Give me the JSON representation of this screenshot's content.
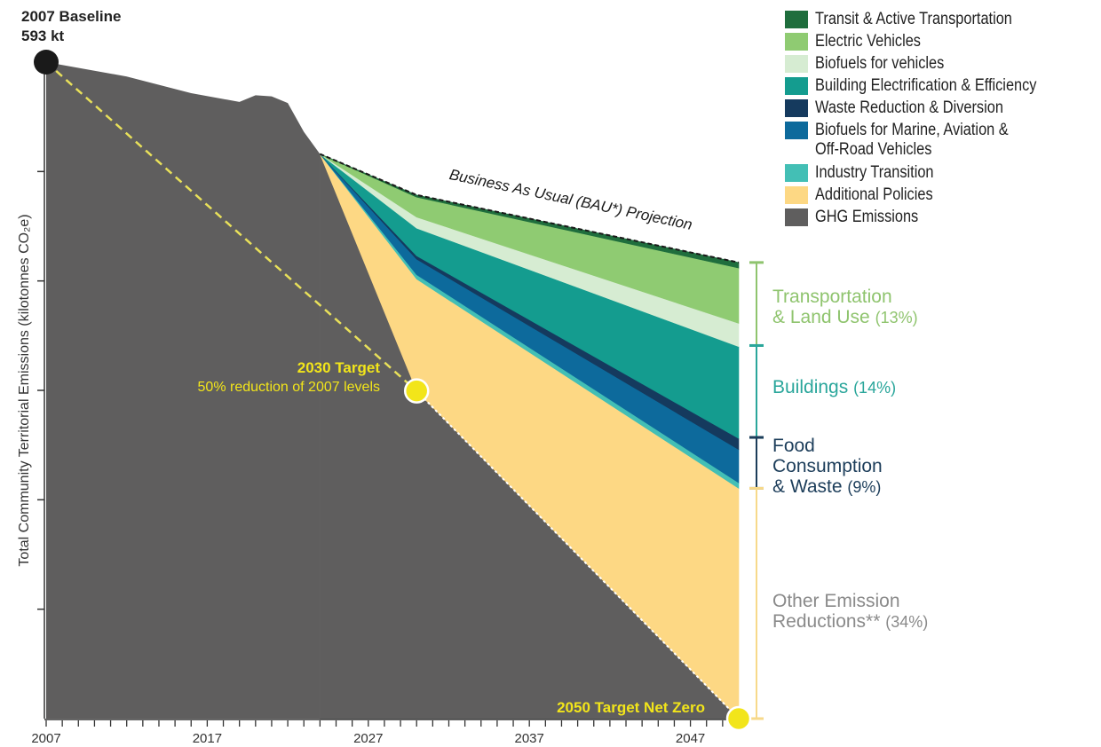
{
  "chart_data": {
    "type": "area",
    "title": "",
    "xlabel": "",
    "ylabel": "Total Community Territorial Emissions (kilotonnes CO₂e)",
    "xlim": [
      2007,
      2051
    ],
    "ylim": [
      0,
      593
    ],
    "x_ticks": [
      2007,
      2017,
      2027,
      2037,
      2047
    ],
    "grid": false,
    "legend_position": "top-right",
    "historical_emissions": {
      "name": "GHG Emissions",
      "x": [
        2007,
        2012,
        2016,
        2019,
        2020,
        2021,
        2022,
        2023,
        2024
      ],
      "y": [
        593,
        580,
        565,
        557,
        563,
        562,
        556,
        530,
        510
      ]
    },
    "bau_projection": {
      "label": "Business As Usual (BAU*) Projection",
      "x": [
        2024,
        2030,
        2050
      ],
      "y": [
        510,
        473,
        412
      ]
    },
    "projection_x": [
      2024,
      2030,
      2050
    ],
    "series": [
      {
        "name": "Transit & Active Transportation",
        "color": "#1f6e3d",
        "values": [
          0,
          2,
          5
        ]
      },
      {
        "name": "Electric Vehicles",
        "color": "#8fcb72",
        "values": [
          0,
          18,
          50
        ]
      },
      {
        "name": "Biofuels for vehicles",
        "color": "#d6ecd2",
        "values": [
          0,
          10,
          21
        ]
      },
      {
        "name": "Building Electrification & Efficiency",
        "color": "#149c8f",
        "values": [
          0,
          25,
          83
        ]
      },
      {
        "name": "Waste Reduction & Diversion",
        "color": "#153a5e",
        "values": [
          0,
          3,
          10
        ]
      },
      {
        "name": "Biofuels for Marine, Aviation & Off-Road Vehicles",
        "color": "#0d6a9c",
        "values": [
          0,
          14,
          30
        ]
      },
      {
        "name": "Industry Transition",
        "color": "#43bfb5",
        "values": [
          0,
          4,
          5
        ]
      },
      {
        "name": "Additional Policies",
        "color": "#fdd884",
        "values": [
          0,
          101,
          208
        ]
      },
      {
        "name": "GHG Emissions",
        "color": "#5f5e5e",
        "values": [
          510,
          296,
          0
        ]
      }
    ],
    "target_line": {
      "x": [
        2007,
        2030,
        2050
      ],
      "y": [
        593,
        296,
        0
      ]
    },
    "markers": [
      {
        "name": "2007 Baseline",
        "x": 2007,
        "y": 593,
        "label_line1": "2007 Baseline",
        "label_line2": "593 kt",
        "color": "#1a1a1a"
      },
      {
        "name": "2030 Target",
        "x": 2030,
        "y": 296,
        "label_line1": "2030 Target",
        "label_line2": "50% reduction of 2007 levels",
        "color": "#f2e51a"
      },
      {
        "name": "2050 Target Net Zero",
        "x": 2050,
        "y": 0,
        "label_line1": "2050 Target Net Zero",
        "label_line2": "",
        "color": "#f2e51a"
      }
    ],
    "sector_brackets": [
      {
        "name": "transport",
        "line1": "Transportation",
        "line2": "& Land Use",
        "line3": "",
        "pct": "(13%)",
        "y_top": 412,
        "y_bottom": 337,
        "color": "#8fc46e"
      },
      {
        "name": "buildings",
        "line1": "Buildings",
        "line2": "",
        "line3": "",
        "pct": "(14%)",
        "y_top": 337,
        "y_bottom": 254,
        "color": "#2aa69b"
      },
      {
        "name": "food-waste",
        "line1": "Food",
        "line2": "Consumption",
        "line3": "& Waste",
        "pct": "(9%)",
        "y_top": 254,
        "y_bottom": 208,
        "color": "#1c3d5a"
      },
      {
        "name": "other",
        "line1": "Other Emission",
        "line2": "Reductions**",
        "line3": "",
        "pct": "(34%)",
        "y_top": 208,
        "y_bottom": 0,
        "color": "#f7d98a"
      }
    ],
    "colors": {
      "target_line": "#e8e05a",
      "bau_line": "#1a1a1a",
      "axis": "#333333",
      "other_label": "#8a8a8a"
    }
  }
}
